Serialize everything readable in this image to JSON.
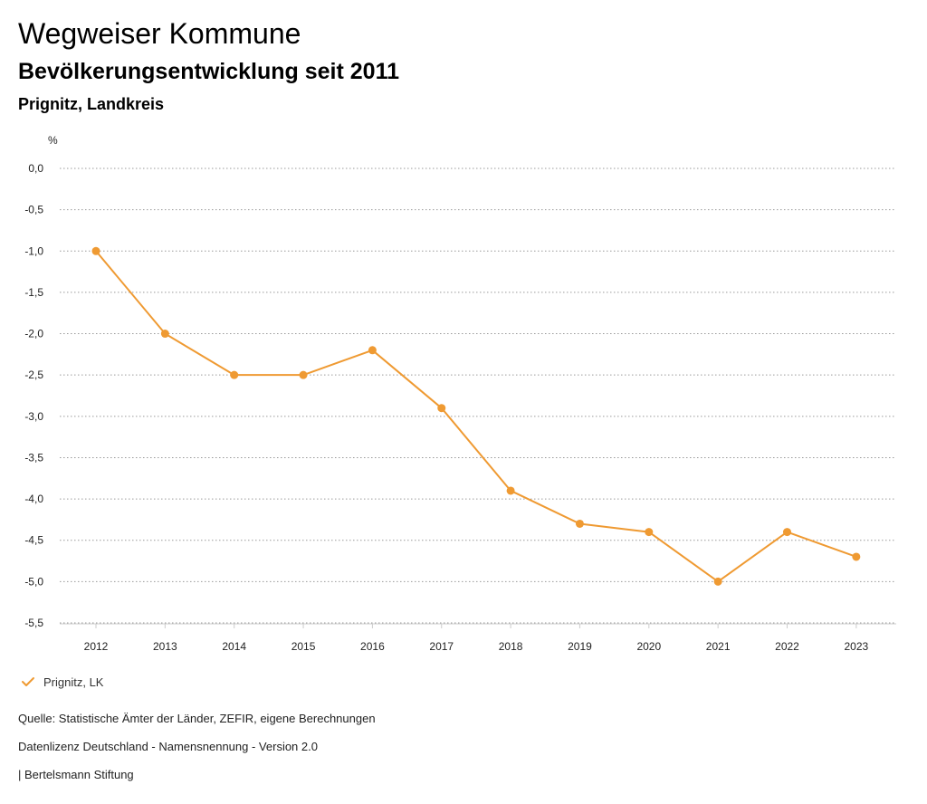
{
  "header": {
    "title": "Wegweiser Kommune",
    "subtitle": "Bevölkerungsentwicklung seit 2011",
    "region": "Prignitz, Landkreis"
  },
  "chart_data": {
    "type": "line",
    "title": "Bevölkerungsentwicklung seit 2011",
    "xlabel": "",
    "ylabel": "%",
    "categories": [
      "2012",
      "2013",
      "2014",
      "2015",
      "2016",
      "2017",
      "2018",
      "2019",
      "2020",
      "2021",
      "2022",
      "2023"
    ],
    "series": [
      {
        "name": "Prignitz, LK",
        "color": "#ef9a32",
        "values": [
          -1.0,
          -2.0,
          -2.5,
          -2.5,
          -2.2,
          -2.9,
          -3.9,
          -4.3,
          -4.4,
          -5.0,
          -4.4,
          -4.7
        ]
      }
    ],
    "ylim": [
      -5.5,
      0.0
    ],
    "yticks": [
      0.0,
      -0.5,
      -1.0,
      -1.5,
      -2.0,
      -2.5,
      -3.0,
      -3.5,
      -4.0,
      -4.5,
      -5.0,
      -5.5
    ],
    "ytick_labels": [
      "0,0",
      "-0,5",
      "-1,0",
      "-1,5",
      "-2,0",
      "-2,5",
      "-3,0",
      "-3,5",
      "-4,0",
      "-4,5",
      "-5,0",
      "-5,5"
    ],
    "grid": true,
    "legend_position": "bottom-left"
  },
  "legend": {
    "label": "Prignitz, LK",
    "icon": "check-icon",
    "color": "#ef9a32"
  },
  "footer": {
    "source": "Quelle: Statistische Ämter der Länder, ZEFIR, eigene Berechnungen",
    "license": "Datenlizenz Deutschland - Namensnennung - Version 2.0",
    "brand": "| Bertelsmann Stiftung"
  }
}
